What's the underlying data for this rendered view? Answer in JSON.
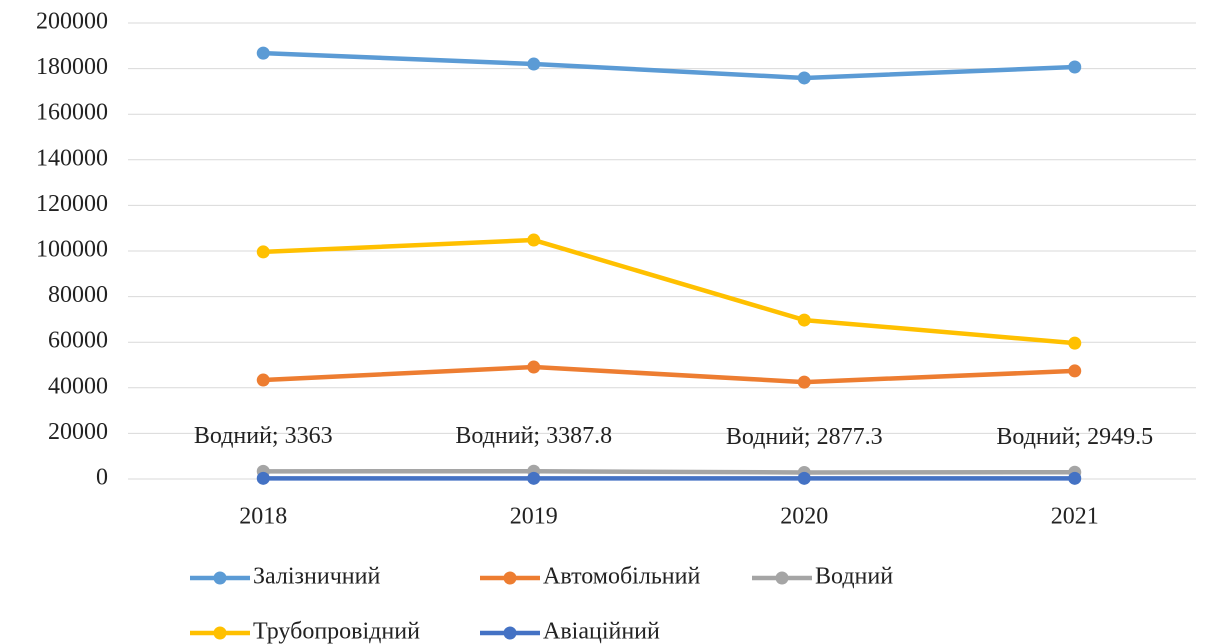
{
  "chart_data": {
    "type": "line",
    "categories": [
      "2018",
      "2019",
      "2020",
      "2021"
    ],
    "series": [
      {
        "name": "Залізничний",
        "color": "#5b9bd5",
        "values": [
          186800,
          182000,
          175900,
          180700
        ]
      },
      {
        "name": "Автомобільний",
        "color": "#ed7d31",
        "values": [
          43400,
          49100,
          42500,
          47400
        ]
      },
      {
        "name": "Водний",
        "color": "#a5a5a5",
        "values": [
          3363,
          3387.8,
          2877.3,
          2949.5
        ],
        "value_labels": [
          "Водний; 3363",
          "Водний; 3387.8",
          "Водний; 2877.3",
          "Водний; 2949.5"
        ]
      },
      {
        "name": "Трубопровідний",
        "color": "#ffc000",
        "values": [
          99600,
          104800,
          69700,
          59600
        ]
      },
      {
        "name": "Авіаційний",
        "color": "#4472c4",
        "values": [
          300,
          300,
          300,
          300
        ]
      }
    ],
    "ylim": [
      0,
      200000
    ],
    "yticks": [
      0,
      20000,
      40000,
      60000,
      80000,
      100000,
      120000,
      140000,
      160000,
      180000,
      200000
    ],
    "grid": true,
    "legend": "bottom"
  }
}
